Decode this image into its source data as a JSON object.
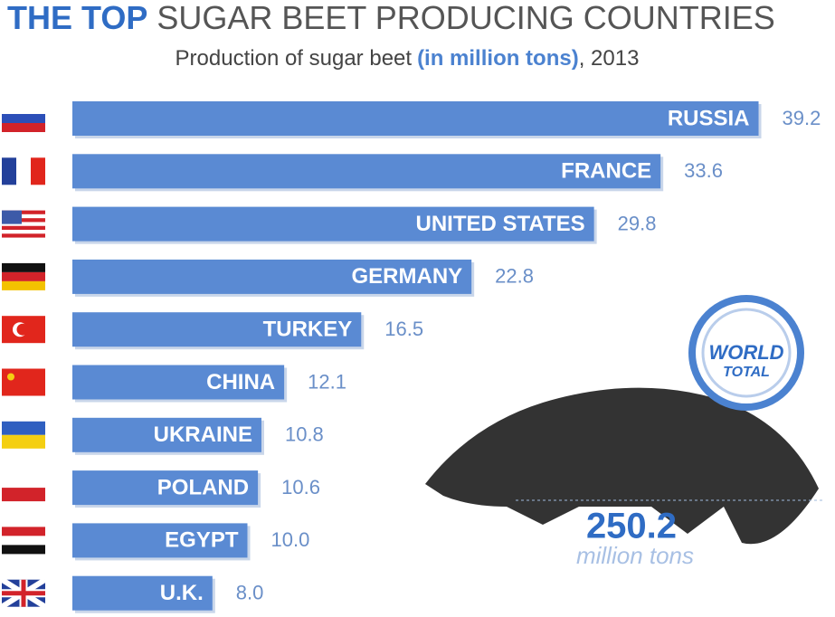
{
  "chart_data": {
    "type": "bar",
    "orientation": "horizontal",
    "title": [
      "THE TOP",
      "SUGAR BEET PRODUCING COUNTRIES"
    ],
    "subtitle": [
      "Production of sugar beet",
      "(in million tons)",
      ", 2013"
    ],
    "categories": [
      "RUSSIA",
      "FRANCE",
      "UNITED STATES",
      "GERMANY",
      "TURKEY",
      "CHINA",
      "UKRAINE",
      "POLAND",
      "EGYPT",
      "U.K."
    ],
    "values": [
      39.2,
      33.6,
      29.8,
      22.8,
      16.5,
      12.1,
      10.8,
      10.6,
      10.0,
      8.0
    ],
    "value_labels": [
      "39.2",
      "33.6",
      "29.8",
      "22.8",
      "16.5",
      "12.1",
      "10.8",
      "10.6",
      "10.0",
      "8.0"
    ],
    "color": "#5a8ad3",
    "world_total": {
      "badge": [
        "WORLD",
        "TOTAL"
      ],
      "value": 250.2,
      "unit": "million tons"
    }
  }
}
